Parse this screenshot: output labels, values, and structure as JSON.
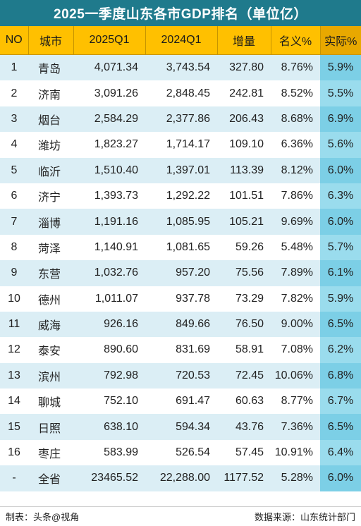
{
  "title": "2025一季度山东各市GDP排名（单位亿）",
  "headers": [
    "NO",
    "城市",
    "2025Q1",
    "2024Q1",
    "增量",
    "名义%",
    "实际%"
  ],
  "rows": [
    [
      "1",
      "青岛",
      "4,071.34",
      "3,743.54",
      "327.80",
      "8.76%",
      "5.9%"
    ],
    [
      "2",
      "济南",
      "3,091.26",
      "2,848.45",
      "242.81",
      "8.52%",
      "5.5%"
    ],
    [
      "3",
      "烟台",
      "2,584.29",
      "2,377.86",
      "206.43",
      "8.68%",
      "6.9%"
    ],
    [
      "4",
      "潍坊",
      "1,823.27",
      "1,714.17",
      "109.10",
      "6.36%",
      "5.6%"
    ],
    [
      "5",
      "临沂",
      "1,510.40",
      "1,397.01",
      "113.39",
      "8.12%",
      "6.0%"
    ],
    [
      "6",
      "济宁",
      "1,393.73",
      "1,292.22",
      "101.51",
      "7.86%",
      "6.3%"
    ],
    [
      "7",
      "淄博",
      "1,191.16",
      "1,085.95",
      "105.21",
      "9.69%",
      "6.0%"
    ],
    [
      "8",
      "菏泽",
      "1,140.91",
      "1,081.65",
      "59.26",
      "5.48%",
      "5.7%"
    ],
    [
      "9",
      "东营",
      "1,032.76",
      "957.20",
      "75.56",
      "7.89%",
      "6.1%"
    ],
    [
      "10",
      "德州",
      "1,011.07",
      "937.78",
      "73.29",
      "7.82%",
      "5.9%"
    ],
    [
      "11",
      "威海",
      "926.16",
      "849.66",
      "76.50",
      "9.00%",
      "6.5%"
    ],
    [
      "12",
      "泰安",
      "890.60",
      "831.69",
      "58.91",
      "7.08%",
      "6.2%"
    ],
    [
      "13",
      "滨州",
      "792.98",
      "720.53",
      "72.45",
      "10.06%",
      "6.8%"
    ],
    [
      "14",
      "聊城",
      "752.10",
      "691.47",
      "60.63",
      "8.77%",
      "6.7%"
    ],
    [
      "15",
      "日照",
      "638.10",
      "594.34",
      "43.76",
      "7.36%",
      "6.5%"
    ],
    [
      "16",
      "枣庄",
      "583.99",
      "526.54",
      "57.45",
      "10.91%",
      "6.4%"
    ],
    [
      "-",
      "全省",
      "23465.52",
      "22,288.00",
      "1177.52",
      "5.28%",
      "6.0%"
    ]
  ],
  "footer": {
    "left": "制表：头条@视角",
    "right": "数据来源：山东统计部门"
  },
  "colors": {
    "title_bg": "#1f7a8c",
    "header_bg": "#ffc000",
    "stripe": "#dbeef5",
    "real_col": "#7ccfe6"
  }
}
